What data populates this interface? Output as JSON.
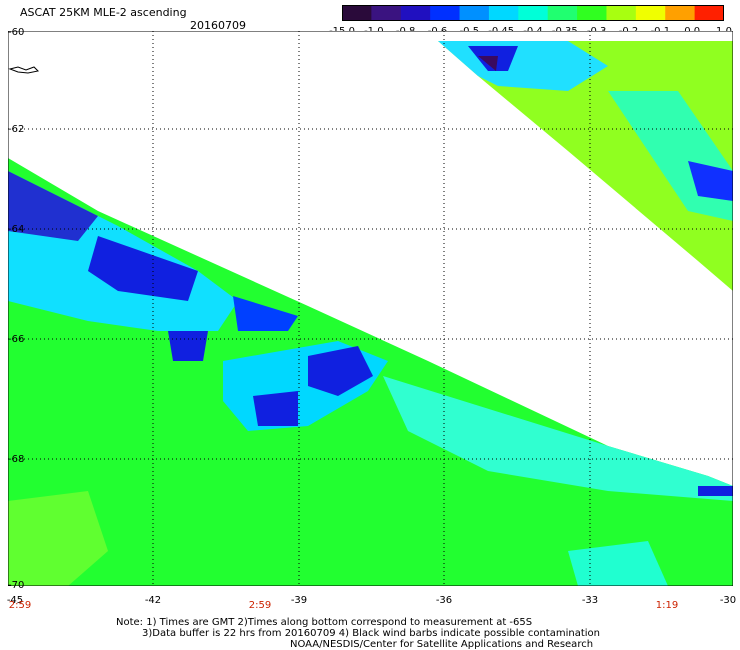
{
  "header": {
    "title": "ASCAT 25KM MLE-2 ascending",
    "date": "20160709"
  },
  "colorbar": {
    "labels": [
      "-15.0",
      "-1.0",
      "-0.8",
      "-0.6",
      "-0.5",
      "-0.45",
      "-0.4",
      "-0.35",
      "-0.3",
      "-0.2",
      "-0.1",
      "0.0",
      "1.0"
    ],
    "colors": [
      "#2a0a3a",
      "#3a1380",
      "#2010c0",
      "#0030ff",
      "#0090ff",
      "#00d8ff",
      "#00ffd8",
      "#20ff70",
      "#30ff20",
      "#a8ff10",
      "#f0ff00",
      "#ffa000",
      "#ff2000"
    ]
  },
  "axes": {
    "lat_labels": [
      "-60",
      "-62",
      "-64",
      "-66",
      "-68",
      "-70"
    ],
    "lon_labels": [
      "-45",
      "-42",
      "-39",
      "-36",
      "-33",
      "-30"
    ]
  },
  "times": [
    "2:59",
    "2:59",
    "1:19"
  ],
  "notes": {
    "line1": "Note: 1) Times are GMT 2)Times along bottom correspond to measurement at -65S",
    "line2": "3)Data buffer is 22 hrs from 20160709 4) Black wind barbs indicate possible contamination",
    "line3": "NOAA/NESDIS/Center for Satellite Applications and Research"
  }
}
